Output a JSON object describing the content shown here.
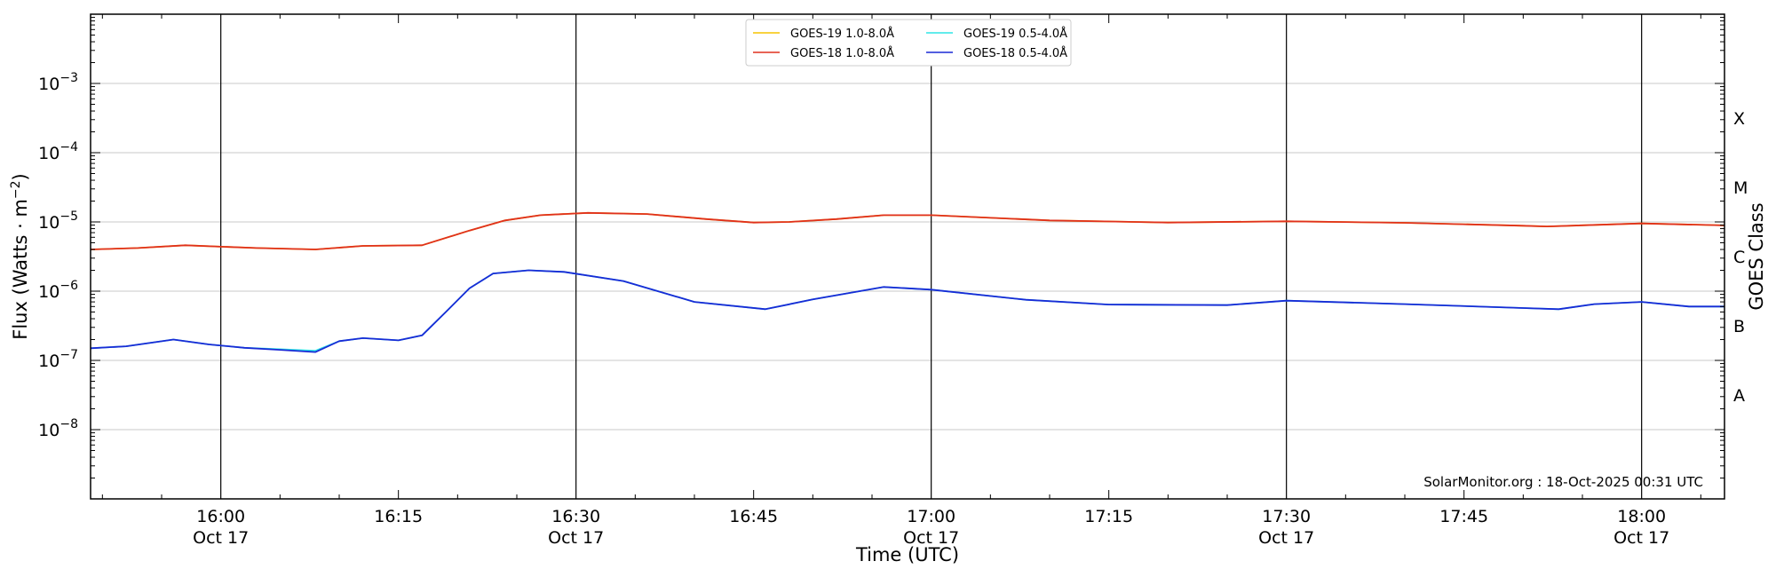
{
  "chart_data": {
    "type": "line",
    "xlabel": "Time (UTC)",
    "ylabel": "Flux (Watts · m",
    "ylabel_sup": "−2",
    "ylabel_close": ")",
    "right_label": "GOES Class",
    "annotation": "SolarMonitor.org : 18-Oct-2025 00:31 UTC",
    "x_range": [
      "15:49",
      "18:07"
    ],
    "y_scale": "log",
    "y_range": [
      1e-09,
      0.01
    ],
    "x_ticks": [
      {
        "t": "16:00",
        "label": "16:00",
        "date": "Oct 17",
        "major": true
      },
      {
        "t": "16:15",
        "label": "16:15",
        "date": "",
        "major": false
      },
      {
        "t": "16:30",
        "label": "16:30",
        "date": "Oct 17",
        "major": true
      },
      {
        "t": "16:45",
        "label": "16:45",
        "date": "",
        "major": false
      },
      {
        "t": "17:00",
        "label": "17:00",
        "date": "Oct 17",
        "major": true
      },
      {
        "t": "17:15",
        "label": "17:15",
        "date": "",
        "major": false
      },
      {
        "t": "17:30",
        "label": "17:30",
        "date": "Oct 17",
        "major": true
      },
      {
        "t": "17:45",
        "label": "17:45",
        "date": "",
        "major": false
      },
      {
        "t": "18:00",
        "label": "18:00",
        "date": "Oct 17",
        "major": true
      }
    ],
    "y_ticks": [
      {
        "exp": -8,
        "base": "10",
        "sup": "−8"
      },
      {
        "exp": -7,
        "base": "10",
        "sup": "−7"
      },
      {
        "exp": -6,
        "base": "10",
        "sup": "−6"
      },
      {
        "exp": -5,
        "base": "10",
        "sup": "−5"
      },
      {
        "exp": -4,
        "base": "10",
        "sup": "−4"
      },
      {
        "exp": -3,
        "base": "10",
        "sup": "−3"
      }
    ],
    "goes_classes": [
      {
        "label": "A",
        "exp": -7.5
      },
      {
        "label": "B",
        "exp": -6.5
      },
      {
        "label": "C",
        "exp": -5.5
      },
      {
        "label": "M",
        "exp": -4.5
      },
      {
        "label": "X",
        "exp": -3.5
      }
    ],
    "grid": true,
    "legend_position": "top-center",
    "series": [
      {
        "name": "GOES-19 1.0-8.0Å",
        "color": "#f5c400",
        "t": [
          "15:49",
          "15:53",
          "15:57",
          "16:03",
          "16:08",
          "16:12",
          "16:17",
          "16:21",
          "16:24",
          "16:27",
          "16:31",
          "16:36",
          "16:41",
          "16:45",
          "16:48",
          "16:52",
          "16:56",
          "17:00",
          "17:10",
          "17:20",
          "17:30",
          "17:40",
          "17:50",
          "17:52",
          "18:00",
          "18:07"
        ],
        "y": [
          4e-06,
          4.2e-06,
          4.6e-06,
          4.2e-06,
          4e-06,
          4.5e-06,
          4.6e-06,
          7.5e-06,
          1.05e-05,
          1.25e-05,
          1.35e-05,
          1.3e-05,
          1.1e-05,
          9.8e-06,
          1e-05,
          1.1e-05,
          1.25e-05,
          1.25e-05,
          1.05e-05,
          9.8e-06,
          1.02e-05,
          9.7e-06,
          8.8e-06,
          8.6e-06,
          9.5e-06,
          8.9e-06
        ]
      },
      {
        "name": "GOES-18 1.0-8.0Å",
        "color": "#e0301e",
        "t": [
          "15:49",
          "15:53",
          "15:57",
          "16:03",
          "16:08",
          "16:12",
          "16:17",
          "16:21",
          "16:24",
          "16:27",
          "16:31",
          "16:36",
          "16:41",
          "16:45",
          "16:48",
          "16:52",
          "16:56",
          "17:00",
          "17:10",
          "17:20",
          "17:30",
          "17:40",
          "17:50",
          "17:52",
          "18:00",
          "18:07"
        ],
        "y": [
          4e-06,
          4.2e-06,
          4.6e-06,
          4.2e-06,
          4e-06,
          4.5e-06,
          4.6e-06,
          7.5e-06,
          1.05e-05,
          1.25e-05,
          1.35e-05,
          1.3e-05,
          1.1e-05,
          9.8e-06,
          1e-05,
          1.1e-05,
          1.25e-05,
          1.25e-05,
          1.05e-05,
          9.8e-06,
          1.02e-05,
          9.7e-06,
          8.8e-06,
          8.6e-06,
          9.5e-06,
          8.9e-06
        ]
      },
      {
        "name": "GOES-19 0.5-4.0Å",
        "color": "#2ee6e6",
        "t": [
          "15:49",
          "15:52",
          "15:56",
          "15:59",
          "16:02",
          "16:05",
          "16:08",
          "16:10",
          "16:12",
          "16:15",
          "16:17",
          "16:19",
          "16:21",
          "16:23",
          "16:26",
          "16:29",
          "16:34",
          "16:40",
          "16:46",
          "16:50",
          "16:56",
          "17:00",
          "17:08",
          "17:15",
          "17:25",
          "17:30",
          "17:40",
          "17:50",
          "17:53",
          "17:56",
          "18:00",
          "18:04",
          "18:07"
        ],
        "y": [
          1.5e-07,
          1.6e-07,
          2e-07,
          1.7e-07,
          1.52e-07,
          1.45e-07,
          1.38e-07,
          1.9e-07,
          2.1e-07,
          1.95e-07,
          2.3e-07,
          5e-07,
          1.1e-06,
          1.8e-06,
          2e-06,
          1.9e-06,
          1.4e-06,
          7e-07,
          5.5e-07,
          7.6e-07,
          1.15e-06,
          1.05e-06,
          7.5e-07,
          6.4e-07,
          6.3e-07,
          7.3e-07,
          6.5e-07,
          5.7e-07,
          5.5e-07,
          6.5e-07,
          7e-07,
          6e-07,
          6e-07
        ]
      },
      {
        "name": "GOES-18 0.5-4.0Å",
        "color": "#1a2ad6",
        "t": [
          "15:49",
          "15:52",
          "15:56",
          "15:59",
          "16:02",
          "16:05",
          "16:08",
          "16:10",
          "16:12",
          "16:15",
          "16:17",
          "16:19",
          "16:21",
          "16:23",
          "16:26",
          "16:29",
          "16:34",
          "16:40",
          "16:46",
          "16:50",
          "16:56",
          "17:00",
          "17:08",
          "17:15",
          "17:25",
          "17:30",
          "17:40",
          "17:50",
          "17:53",
          "17:56",
          "18:00",
          "18:04",
          "18:07"
        ],
        "y": [
          1.5e-07,
          1.6e-07,
          2e-07,
          1.7e-07,
          1.52e-07,
          1.42e-07,
          1.32e-07,
          1.9e-07,
          2.1e-07,
          1.95e-07,
          2.3e-07,
          5e-07,
          1.1e-06,
          1.8e-06,
          2e-06,
          1.9e-06,
          1.4e-06,
          7e-07,
          5.5e-07,
          7.6e-07,
          1.15e-06,
          1.05e-06,
          7.5e-07,
          6.4e-07,
          6.3e-07,
          7.3e-07,
          6.5e-07,
          5.7e-07,
          5.5e-07,
          6.5e-07,
          7e-07,
          6e-07,
          6e-07
        ]
      }
    ]
  }
}
